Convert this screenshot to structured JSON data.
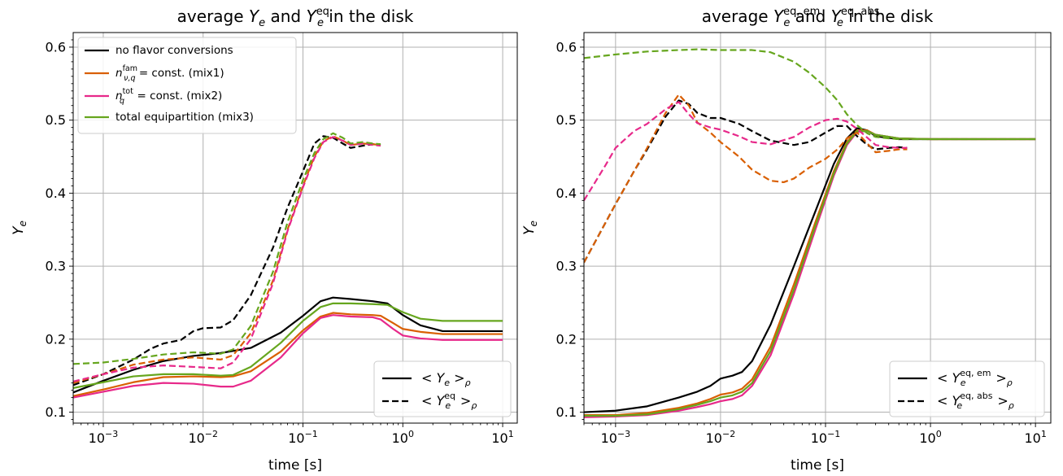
{
  "chart_data": [
    {
      "type": "line",
      "title": "average Y_e and Y_e^eq in the disk",
      "title_parts": {
        "pre": "average ",
        "sym1": "Y",
        "sub1": "e",
        "mid": " and ",
        "sym2": "Y",
        "sub2": "e",
        "sup2": "eq",
        "post": " in the disk"
      },
      "xlabel": "time [s]",
      "ylabel": "Y",
      "ylabel_sub": "e",
      "xscale": "log",
      "xlim": [
        0.0005,
        14
      ],
      "ylim": [
        0.085,
        0.62
      ],
      "grid": true,
      "xticks": [
        {
          "value": 0.001,
          "base": "10",
          "exp": "−3"
        },
        {
          "value": 0.01,
          "base": "10",
          "exp": "−2"
        },
        {
          "value": 0.1,
          "base": "10",
          "exp": "−1"
        },
        {
          "value": 1,
          "base": "10",
          "exp": "0"
        },
        {
          "value": 10,
          "base": "10",
          "exp": "1"
        }
      ],
      "yticks": [
        "0.1",
        "0.2",
        "0.3",
        "0.4",
        "0.5",
        "0.6"
      ],
      "legend_models": {
        "placement": "top-left",
        "entries": [
          {
            "label": "no flavor conversions",
            "color": "#000000"
          },
          {
            "label_sym": "n",
            "label_sup": "fam",
            "label_sub": "ν,q",
            "label_post": " = const. (mix1)",
            "color": "#d95f02"
          },
          {
            "label_sym": "n",
            "label_sup": "tot",
            "label_sub": "q",
            "label_post": " = const. (mix2)",
            "color": "#e7298a"
          },
          {
            "label": "total equipartition (mix3)",
            "color": "#66a61e"
          }
        ]
      },
      "legend_styles": {
        "placement": "lower-right",
        "entries": [
          {
            "style": "solid",
            "pre": "< ",
            "sym": "Y",
            "sub": "e",
            "sup": "",
            "post": " >",
            "post_sub": "ρ"
          },
          {
            "style": "dashed",
            "pre": "< ",
            "sym": "Y",
            "sub": "e",
            "sup": "eq",
            "post": " >",
            "post_sub": "ρ"
          }
        ]
      },
      "series": [
        {
          "model": "no flavor conversions",
          "style": "solid",
          "color": "#000000",
          "x": [
            0.0005,
            0.001,
            0.002,
            0.004,
            0.008,
            0.015,
            0.03,
            0.06,
            0.1,
            0.15,
            0.2,
            0.3,
            0.5,
            0.7,
            1,
            1.5,
            2.5,
            5,
            10
          ],
          "y": [
            0.127,
            0.143,
            0.158,
            0.17,
            0.177,
            0.181,
            0.188,
            0.209,
            0.232,
            0.252,
            0.257,
            0.255,
            0.252,
            0.249,
            0.233,
            0.219,
            0.211,
            0.211,
            0.211
          ]
        },
        {
          "model": "mix1",
          "style": "solid",
          "color": "#d95f02",
          "x": [
            0.0005,
            0.001,
            0.002,
            0.004,
            0.008,
            0.015,
            0.02,
            0.03,
            0.06,
            0.1,
            0.15,
            0.2,
            0.3,
            0.5,
            0.6,
            0.8,
            1,
            1.5,
            2.5,
            5,
            10
          ],
          "y": [
            0.122,
            0.131,
            0.141,
            0.148,
            0.149,
            0.148,
            0.149,
            0.156,
            0.183,
            0.212,
            0.231,
            0.236,
            0.234,
            0.233,
            0.232,
            0.222,
            0.214,
            0.21,
            0.207,
            0.207,
            0.207
          ]
        },
        {
          "model": "mix2",
          "style": "solid",
          "color": "#e7298a",
          "x": [
            0.0005,
            0.001,
            0.002,
            0.004,
            0.008,
            0.015,
            0.02,
            0.03,
            0.06,
            0.1,
            0.15,
            0.2,
            0.3,
            0.5,
            0.6,
            0.8,
            1,
            1.5,
            2.5,
            5,
            10
          ],
          "y": [
            0.12,
            0.128,
            0.136,
            0.14,
            0.139,
            0.135,
            0.135,
            0.143,
            0.175,
            0.208,
            0.229,
            0.233,
            0.231,
            0.23,
            0.227,
            0.214,
            0.205,
            0.201,
            0.199,
            0.199,
            0.199
          ]
        },
        {
          "model": "mix3",
          "style": "solid",
          "color": "#66a61e",
          "x": [
            0.0005,
            0.001,
            0.002,
            0.004,
            0.008,
            0.015,
            0.02,
            0.03,
            0.06,
            0.1,
            0.15,
            0.2,
            0.3,
            0.5,
            0.7,
            1,
            1.5,
            2.5,
            5,
            10
          ],
          "y": [
            0.133,
            0.141,
            0.149,
            0.152,
            0.152,
            0.15,
            0.151,
            0.162,
            0.195,
            0.225,
            0.244,
            0.249,
            0.249,
            0.248,
            0.247,
            0.237,
            0.228,
            0.225,
            0.225,
            0.225
          ]
        },
        {
          "model": "no flavor conversions",
          "style": "dashed",
          "color": "#000000",
          "x": [
            0.0005,
            0.001,
            0.002,
            0.003,
            0.004,
            0.006,
            0.008,
            0.01,
            0.015,
            0.02,
            0.03,
            0.05,
            0.07,
            0.1,
            0.13,
            0.16,
            0.2,
            0.25,
            0.3,
            0.4,
            0.5,
            0.6
          ],
          "y": [
            0.137,
            0.152,
            0.172,
            0.187,
            0.194,
            0.199,
            0.211,
            0.215,
            0.216,
            0.226,
            0.26,
            0.325,
            0.38,
            0.43,
            0.468,
            0.478,
            0.476,
            0.468,
            0.462,
            0.465,
            0.467,
            0.466
          ]
        },
        {
          "model": "mix1",
          "style": "dashed",
          "color": "#d95f02",
          "x": [
            0.0005,
            0.001,
            0.002,
            0.004,
            0.008,
            0.015,
            0.02,
            0.03,
            0.05,
            0.07,
            0.1,
            0.13,
            0.16,
            0.2,
            0.25,
            0.3,
            0.4,
            0.5,
            0.6
          ],
          "y": [
            0.14,
            0.152,
            0.165,
            0.172,
            0.175,
            0.172,
            0.178,
            0.208,
            0.28,
            0.35,
            0.41,
            0.45,
            0.471,
            0.478,
            0.472,
            0.466,
            0.468,
            0.467,
            0.466
          ]
        },
        {
          "model": "mix2",
          "style": "dashed",
          "color": "#e7298a",
          "x": [
            0.0005,
            0.001,
            0.002,
            0.004,
            0.008,
            0.015,
            0.02,
            0.03,
            0.05,
            0.07,
            0.1,
            0.13,
            0.16,
            0.2,
            0.25,
            0.3,
            0.4,
            0.5,
            0.6
          ],
          "y": [
            0.142,
            0.152,
            0.161,
            0.164,
            0.162,
            0.16,
            0.168,
            0.2,
            0.276,
            0.348,
            0.408,
            0.448,
            0.47,
            0.477,
            0.472,
            0.466,
            0.468,
            0.466,
            0.465
          ]
        },
        {
          "model": "mix3",
          "style": "dashed",
          "color": "#66a61e",
          "x": [
            0.0005,
            0.001,
            0.002,
            0.004,
            0.008,
            0.015,
            0.02,
            0.03,
            0.05,
            0.07,
            0.1,
            0.13,
            0.16,
            0.2,
            0.25,
            0.3,
            0.4,
            0.5,
            0.6
          ],
          "y": [
            0.166,
            0.168,
            0.173,
            0.179,
            0.182,
            0.18,
            0.186,
            0.218,
            0.292,
            0.36,
            0.418,
            0.455,
            0.474,
            0.482,
            0.476,
            0.468,
            0.47,
            0.468,
            0.467
          ]
        }
      ]
    },
    {
      "type": "line",
      "title": "average Y_e^eq,em and Y_e^eq,abs in the disk",
      "title_parts": {
        "pre": "average ",
        "sym1": "Y",
        "sub1": "e",
        "sup1": "eq, em",
        "mid": " and ",
        "sym2": "Y",
        "sub2": "e",
        "sup2": "eq, abs",
        "post": " in the disk"
      },
      "xlabel": "time [s]",
      "ylabel": "Y",
      "ylabel_sub": "e",
      "xscale": "log",
      "xlim": [
        0.0005,
        14
      ],
      "ylim": [
        0.085,
        0.62
      ],
      "grid": true,
      "xticks": [
        {
          "value": 0.001,
          "base": "10",
          "exp": "−3"
        },
        {
          "value": 0.01,
          "base": "10",
          "exp": "−2"
        },
        {
          "value": 0.1,
          "base": "10",
          "exp": "−1"
        },
        {
          "value": 1,
          "base": "10",
          "exp": "0"
        },
        {
          "value": 10,
          "base": "10",
          "exp": "1"
        }
      ],
      "yticks": [
        "0.1",
        "0.2",
        "0.3",
        "0.4",
        "0.5",
        "0.6"
      ],
      "legend_styles": {
        "placement": "lower-right",
        "entries": [
          {
            "style": "solid",
            "pre": "< ",
            "sym": "Y",
            "sub": "e",
            "sup": "eq, em",
            "post": " >",
            "post_sub": "ρ"
          },
          {
            "style": "dashed",
            "pre": "< ",
            "sym": "Y",
            "sub": "e",
            "sup": "eq, abs",
            "post": " >",
            "post_sub": "ρ"
          }
        ]
      },
      "series": [
        {
          "model": "no flavor conversions",
          "style": "solid",
          "color": "#000000",
          "x": [
            0.0005,
            0.001,
            0.002,
            0.004,
            0.006,
            0.008,
            0.01,
            0.013,
            0.016,
            0.02,
            0.03,
            0.05,
            0.08,
            0.12,
            0.16,
            0.2,
            0.25,
            0.3,
            0.5,
            1,
            2,
            5,
            10
          ],
          "y": [
            0.1,
            0.102,
            0.108,
            0.12,
            0.128,
            0.136,
            0.146,
            0.15,
            0.155,
            0.17,
            0.22,
            0.3,
            0.375,
            0.44,
            0.475,
            0.489,
            0.486,
            0.478,
            0.474,
            0.474,
            0.474,
            0.474,
            0.474
          ]
        },
        {
          "model": "mix1",
          "style": "solid",
          "color": "#d95f02",
          "x": [
            0.0005,
            0.001,
            0.002,
            0.004,
            0.006,
            0.008,
            0.01,
            0.013,
            0.016,
            0.02,
            0.03,
            0.05,
            0.08,
            0.12,
            0.16,
            0.2,
            0.25,
            0.3,
            0.5,
            1,
            2,
            5,
            10
          ],
          "y": [
            0.096,
            0.096,
            0.099,
            0.106,
            0.112,
            0.118,
            0.124,
            0.127,
            0.132,
            0.145,
            0.19,
            0.275,
            0.36,
            0.43,
            0.47,
            0.486,
            0.486,
            0.48,
            0.475,
            0.474,
            0.474,
            0.474,
            0.474
          ]
        },
        {
          "model": "mix2",
          "style": "solid",
          "color": "#e7298a",
          "x": [
            0.0005,
            0.001,
            0.002,
            0.004,
            0.006,
            0.008,
            0.01,
            0.013,
            0.016,
            0.02,
            0.03,
            0.05,
            0.08,
            0.12,
            0.16,
            0.2,
            0.25,
            0.3,
            0.5,
            1,
            2,
            5,
            10
          ],
          "y": [
            0.093,
            0.094,
            0.096,
            0.102,
            0.107,
            0.111,
            0.115,
            0.118,
            0.123,
            0.136,
            0.178,
            0.262,
            0.35,
            0.424,
            0.466,
            0.484,
            0.485,
            0.48,
            0.475,
            0.474,
            0.474,
            0.474,
            0.474
          ]
        },
        {
          "model": "mix3",
          "style": "solid",
          "color": "#66a61e",
          "x": [
            0.0005,
            0.001,
            0.002,
            0.004,
            0.006,
            0.008,
            0.01,
            0.013,
            0.016,
            0.02,
            0.03,
            0.05,
            0.08,
            0.12,
            0.16,
            0.2,
            0.25,
            0.3,
            0.5,
            1,
            2,
            5,
            10
          ],
          "y": [
            0.095,
            0.095,
            0.097,
            0.104,
            0.11,
            0.115,
            0.12,
            0.123,
            0.128,
            0.14,
            0.184,
            0.268,
            0.355,
            0.427,
            0.468,
            0.485,
            0.485,
            0.48,
            0.475,
            0.474,
            0.474,
            0.474,
            0.474
          ]
        },
        {
          "model": "no flavor conversions",
          "style": "dashed",
          "color": "#000000",
          "x": [
            0.0005,
            0.001,
            0.0015,
            0.002,
            0.003,
            0.004,
            0.005,
            0.006,
            0.008,
            0.01,
            0.015,
            0.02,
            0.03,
            0.05,
            0.07,
            0.1,
            0.13,
            0.16,
            0.2,
            0.25,
            0.3,
            0.4,
            0.5,
            0.6
          ],
          "y": [
            0.305,
            0.385,
            0.43,
            0.46,
            0.505,
            0.527,
            0.522,
            0.51,
            0.503,
            0.503,
            0.495,
            0.485,
            0.472,
            0.466,
            0.47,
            0.483,
            0.492,
            0.492,
            0.478,
            0.466,
            0.46,
            0.462,
            0.463,
            0.462
          ]
        },
        {
          "model": "mix1",
          "style": "dashed",
          "color": "#d95f02",
          "x": [
            0.0005,
            0.001,
            0.0015,
            0.002,
            0.003,
            0.004,
            0.005,
            0.006,
            0.008,
            0.01,
            0.015,
            0.02,
            0.03,
            0.04,
            0.05,
            0.07,
            0.1,
            0.13,
            0.16,
            0.2,
            0.25,
            0.3,
            0.4,
            0.5,
            0.6
          ],
          "y": [
            0.305,
            0.385,
            0.43,
            0.462,
            0.51,
            0.535,
            0.52,
            0.497,
            0.483,
            0.47,
            0.45,
            0.432,
            0.417,
            0.415,
            0.42,
            0.435,
            0.447,
            0.46,
            0.475,
            0.483,
            0.468,
            0.456,
            0.458,
            0.46,
            0.46
          ]
        },
        {
          "model": "mix2",
          "style": "dashed",
          "color": "#e7298a",
          "x": [
            0.0005,
            0.0008,
            0.001,
            0.0015,
            0.002,
            0.003,
            0.004,
            0.005,
            0.006,
            0.008,
            0.01,
            0.015,
            0.02,
            0.03,
            0.05,
            0.07,
            0.1,
            0.13,
            0.16,
            0.2,
            0.25,
            0.3,
            0.4,
            0.5,
            0.6
          ],
          "y": [
            0.39,
            0.438,
            0.462,
            0.485,
            0.495,
            0.515,
            0.525,
            0.508,
            0.496,
            0.49,
            0.487,
            0.478,
            0.47,
            0.467,
            0.477,
            0.49,
            0.5,
            0.502,
            0.498,
            0.488,
            0.476,
            0.466,
            0.463,
            0.462,
            0.462
          ]
        },
        {
          "model": "mix3",
          "style": "dashed",
          "color": "#66a61e",
          "x": [
            0.0005,
            0.001,
            0.002,
            0.004,
            0.006,
            0.01,
            0.02,
            0.03,
            0.05,
            0.07,
            0.1,
            0.13,
            0.16,
            0.2,
            0.25,
            0.3,
            0.4,
            0.5,
            1,
            2,
            5,
            10
          ],
          "y": [
            0.585,
            0.59,
            0.594,
            0.596,
            0.597,
            0.596,
            0.596,
            0.593,
            0.58,
            0.565,
            0.545,
            0.527,
            0.508,
            0.493,
            0.482,
            0.477,
            0.475,
            0.474,
            0.474,
            0.474,
            0.474,
            0.474
          ]
        }
      ]
    }
  ]
}
